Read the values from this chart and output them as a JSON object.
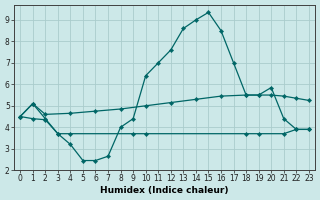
{
  "xlabel": "Humidex (Indice chaleur)",
  "bg_color": "#cce8e8",
  "grid_color": "#aacccc",
  "line_color": "#006666",
  "xlim": [
    -0.5,
    23.5
  ],
  "ylim": [
    2.0,
    9.7
  ],
  "yticks": [
    2,
    3,
    4,
    5,
    6,
    7,
    8,
    9
  ],
  "xtick_labels": [
    "0",
    "1",
    "2",
    "3",
    "4",
    "5",
    "6",
    "7",
    "8",
    "9",
    "10",
    "11",
    "12",
    "13",
    "14",
    "15",
    "16",
    "17",
    "18",
    "19",
    "20",
    "21",
    "22",
    "23"
  ],
  "xticks": [
    0,
    1,
    2,
    3,
    4,
    5,
    6,
    7,
    8,
    9,
    10,
    11,
    12,
    13,
    14,
    15,
    16,
    17,
    18,
    19,
    20,
    21,
    22,
    23
  ],
  "line1_x": [
    0,
    1,
    2,
    3,
    4,
    5,
    6,
    7,
    8,
    9,
    10,
    11,
    12,
    13,
    14,
    15,
    16,
    17,
    18,
    19,
    20,
    21,
    22,
    23
  ],
  "line1_y": [
    4.5,
    5.1,
    4.4,
    3.7,
    3.2,
    2.45,
    2.45,
    2.65,
    4.0,
    4.4,
    6.4,
    7.0,
    7.6,
    8.6,
    9.0,
    9.35,
    8.5,
    7.0,
    5.5,
    5.5,
    5.85,
    4.4,
    3.9,
    3.9
  ],
  "line2_x": [
    0,
    1,
    2,
    4,
    6,
    8,
    10,
    12,
    14,
    16,
    18,
    19,
    20,
    21,
    22,
    23
  ],
  "line2_y": [
    4.5,
    5.1,
    4.6,
    4.65,
    4.75,
    4.85,
    5.0,
    5.15,
    5.3,
    5.45,
    5.5,
    5.5,
    5.5,
    5.45,
    5.35,
    5.25
  ],
  "line3_x": [
    0,
    1,
    2,
    3,
    4,
    9,
    10,
    18,
    19,
    21,
    22,
    23
  ],
  "line3_y": [
    4.5,
    4.4,
    4.35,
    3.7,
    3.7,
    3.7,
    3.7,
    3.7,
    3.7,
    3.7,
    3.9,
    3.9
  ]
}
